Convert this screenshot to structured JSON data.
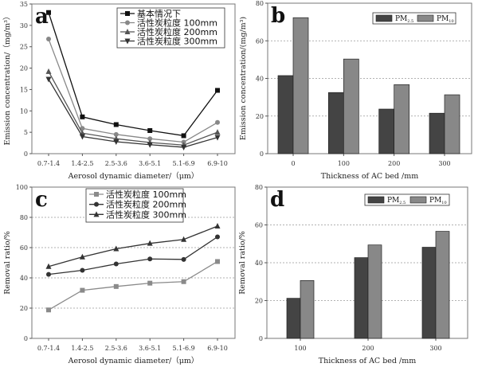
{
  "chart_data": [
    {
      "panel": "a",
      "type": "line",
      "title": "",
      "xlabel": "Aerosol dynamic diameter/（μm）",
      "ylabel": "Emission concentration/（mg/m³）",
      "categories": [
        "0.7-1.4",
        "1.4-2.5",
        "2.5-3.6",
        "3.6-5.1",
        "5.1-6.9",
        "6.9-10"
      ],
      "ylim": [
        0,
        35
      ],
      "yticks": [
        0,
        5,
        10,
        15,
        20,
        25,
        30,
        35
      ],
      "grid": false,
      "legend": "top-right",
      "series": [
        {
          "name": "基本情况下",
          "marker": "square",
          "color": "#111111",
          "values": [
            33,
            8.6,
            6.8,
            5.4,
            4.2,
            14.8
          ]
        },
        {
          "name": "活性炭粒度 100mm",
          "marker": "circle",
          "color": "#888888",
          "values": [
            26.8,
            5.9,
            4.5,
            3.5,
            2.7,
            7.3
          ]
        },
        {
          "name": "活性炭粒度 200mm",
          "marker": "triangle",
          "color": "#555555",
          "values": [
            19.2,
            4.8,
            3.5,
            2.6,
            2.0,
            5.0
          ]
        },
        {
          "name": "活性炭粒度 300mm",
          "marker": "triangle-down",
          "color": "#333333",
          "values": [
            17.4,
            4.0,
            2.8,
            2.1,
            1.5,
            3.8
          ]
        }
      ]
    },
    {
      "panel": "b",
      "type": "bar",
      "title": "",
      "xlabel": "Thickness of AC bed /mm",
      "ylabel": "Emission concentration/(mg/m³)",
      "categories": [
        "0",
        "100",
        "200",
        "300"
      ],
      "ylim": [
        0,
        80
      ],
      "yticks": [
        0,
        20,
        40,
        60,
        80
      ],
      "grid": true,
      "legend": "top-right",
      "series": [
        {
          "name": "PM",
          "sub": "2.5",
          "color": "#444444",
          "values": [
            41.5,
            32.5,
            23.7,
            21.5
          ]
        },
        {
          "name": "PM",
          "sub": "10",
          "color": "#888888",
          "values": [
            72.3,
            50.3,
            36.7,
            31.3
          ]
        }
      ]
    },
    {
      "panel": "c",
      "type": "line",
      "title": "",
      "xlabel": "Aerosol dynamic diameter/（μm）",
      "ylabel": "Removal ratio/%",
      "categories": [
        "0.7-1.4",
        "1.4-2.5",
        "2.5-3.6",
        "3.6-5.1",
        "5.1-6.9",
        "6.9-10"
      ],
      "ylim": [
        0,
        100
      ],
      "yticks": [
        0,
        20,
        40,
        60,
        80,
        100
      ],
      "grid": true,
      "legend": "top",
      "series": [
        {
          "name": "活性炭粒度 100mm",
          "marker": "square",
          "color": "#8a8a8a",
          "values": [
            18.8,
            31.8,
            34.3,
            36.5,
            37.5,
            50.8
          ]
        },
        {
          "name": "活性炭粒度 200mm",
          "marker": "circle",
          "color": "#333333",
          "values": [
            42.3,
            45.0,
            49.2,
            52.5,
            52.2,
            67.1
          ]
        },
        {
          "name": "活性炭粒度 300mm",
          "marker": "triangle",
          "color": "#333333",
          "values": [
            47.5,
            53.8,
            59.2,
            62.8,
            65.4,
            74.2
          ]
        }
      ]
    },
    {
      "panel": "d",
      "type": "bar",
      "title": "",
      "xlabel": "Thickness of AC bed /mm",
      "ylabel": "Removal ratio/%",
      "categories": [
        "100",
        "200",
        "300"
      ],
      "ylim": [
        0,
        80
      ],
      "yticks": [
        0,
        20,
        40,
        60,
        80
      ],
      "grid": true,
      "legend": "top-right",
      "series": [
        {
          "name": "PM",
          "sub": "2.5",
          "color": "#444444",
          "values": [
            21.2,
            42.7,
            48.2
          ]
        },
        {
          "name": "PM",
          "sub": "10",
          "color": "#888888",
          "values": [
            30.6,
            49.4,
            56.6
          ]
        }
      ]
    }
  ]
}
